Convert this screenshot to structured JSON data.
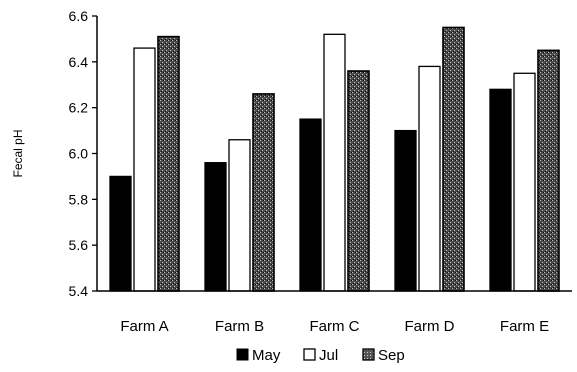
{
  "chart_data": {
    "type": "bar",
    "title": "",
    "xlabel": "",
    "ylabel": "Fecal pH",
    "ylim": [
      5.4,
      6.6
    ],
    "yticks": [
      5.4,
      5.6,
      5.8,
      6.0,
      6.2,
      6.4,
      6.6
    ],
    "ytick_labels": [
      "5.4",
      "5.6",
      "5.8",
      "6.0",
      "6.2",
      "6.4",
      "6.6"
    ],
    "grid": false,
    "legend_position": "bottom",
    "categories": [
      "Farm A",
      "Farm B",
      "Farm C",
      "Farm D",
      "Farm E"
    ],
    "series": [
      {
        "name": "May",
        "values": [
          5.9,
          5.96,
          6.15,
          6.1,
          6.28
        ],
        "fill": "#000000",
        "pattern": "solid"
      },
      {
        "name": "Jul",
        "values": [
          6.46,
          6.06,
          6.52,
          6.38,
          6.35
        ],
        "fill": "#ffffff",
        "pattern": "open"
      },
      {
        "name": "Sep",
        "values": [
          6.51,
          6.26,
          6.36,
          6.55,
          6.45
        ],
        "fill": "#3a3a3a",
        "pattern": "stipple"
      }
    ]
  }
}
